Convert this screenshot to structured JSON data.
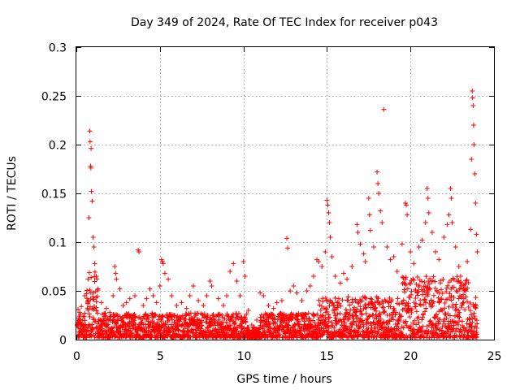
{
  "chart_data": {
    "type": "scatter",
    "title": "Day 349 of 2024, Rate Of TEC Index for receiver p043",
    "xlabel": "GPS time / hours",
    "ylabel": "ROTI / TECUs",
    "xlim": [
      0,
      25
    ],
    "ylim": [
      0,
      0.3
    ],
    "xticks": [
      0,
      5,
      10,
      15,
      20,
      25
    ],
    "xtick_labels": [
      "0",
      "5",
      "10",
      "15",
      "20",
      "25"
    ],
    "yticks": [
      0,
      0.05,
      0.1,
      0.15,
      0.2,
      0.25,
      0.3
    ],
    "ytick_labels": [
      "0",
      "0.05",
      "0.1",
      "0.15",
      "0.2",
      "0.25",
      "0.3"
    ],
    "grid": true,
    "marker": "plus",
    "color": "#ff0000",
    "series": [
      {
        "name": "ROTI",
        "points": [
          [
            0.1,
            0.031
          ],
          [
            0.2,
            0.028
          ],
          [
            0.3,
            0.034
          ],
          [
            0.4,
            0.024
          ],
          [
            0.5,
            0.045
          ],
          [
            0.6,
            0.047
          ],
          [
            0.7,
            0.062
          ],
          [
            0.75,
            0.125
          ],
          [
            0.8,
            0.214
          ],
          [
            0.82,
            0.203
          ],
          [
            0.85,
            0.178
          ],
          [
            0.87,
            0.176
          ],
          [
            0.88,
            0.196
          ],
          [
            0.9,
            0.152
          ],
          [
            0.95,
            0.142
          ],
          [
            1.0,
            0.105
          ],
          [
            1.05,
            0.095
          ],
          [
            1.1,
            0.078
          ],
          [
            1.2,
            0.065
          ],
          [
            1.3,
            0.052
          ],
          [
            1.5,
            0.038
          ],
          [
            1.8,
            0.032
          ],
          [
            2.0,
            0.028
          ],
          [
            2.2,
            0.045
          ],
          [
            2.3,
            0.075
          ],
          [
            2.35,
            0.068
          ],
          [
            2.4,
            0.062
          ],
          [
            2.6,
            0.052
          ],
          [
            2.8,
            0.035
          ],
          [
            3.0,
            0.038
          ],
          [
            3.2,
            0.042
          ],
          [
            3.5,
            0.045
          ],
          [
            3.7,
            0.092
          ],
          [
            3.75,
            0.09
          ],
          [
            4.0,
            0.035
          ],
          [
            4.2,
            0.042
          ],
          [
            4.4,
            0.052
          ],
          [
            4.6,
            0.045
          ],
          [
            4.8,
            0.038
          ],
          [
            5.0,
            0.055
          ],
          [
            5.1,
            0.082
          ],
          [
            5.15,
            0.08
          ],
          [
            5.2,
            0.078
          ],
          [
            5.3,
            0.068
          ],
          [
            5.5,
            0.062
          ],
          [
            5.7,
            0.045
          ],
          [
            6.0,
            0.035
          ],
          [
            6.3,
            0.038
          ],
          [
            6.6,
            0.032
          ],
          [
            6.8,
            0.045
          ],
          [
            7.0,
            0.055
          ],
          [
            7.3,
            0.04
          ],
          [
            7.6,
            0.035
          ],
          [
            7.8,
            0.045
          ],
          [
            8.0,
            0.06
          ],
          [
            8.1,
            0.055
          ],
          [
            8.5,
            0.042
          ],
          [
            8.8,
            0.035
          ],
          [
            9.0,
            0.045
          ],
          [
            9.2,
            0.07
          ],
          [
            9.4,
            0.078
          ],
          [
            9.6,
            0.06
          ],
          [
            9.8,
            0.045
          ],
          [
            10.0,
            0.08
          ],
          [
            10.1,
            0.065
          ],
          [
            10.3,
            0.03
          ],
          [
            10.5,
            0.015
          ],
          [
            10.8,
            0.02
          ],
          [
            11.0,
            0.048
          ],
          [
            11.2,
            0.045
          ],
          [
            11.5,
            0.035
          ],
          [
            11.8,
            0.032
          ],
          [
            12.0,
            0.038
          ],
          [
            12.3,
            0.04
          ],
          [
            12.6,
            0.104
          ],
          [
            12.65,
            0.094
          ],
          [
            12.8,
            0.05
          ],
          [
            13.0,
            0.055
          ],
          [
            13.2,
            0.048
          ],
          [
            13.5,
            0.04
          ],
          [
            13.8,
            0.05
          ],
          [
            14.0,
            0.055
          ],
          [
            14.2,
            0.065
          ],
          [
            14.4,
            0.082
          ],
          [
            14.5,
            0.08
          ],
          [
            14.7,
            0.075
          ],
          [
            14.9,
            0.09
          ],
          [
            15.0,
            0.143
          ],
          [
            15.05,
            0.138
          ],
          [
            15.1,
            0.13
          ],
          [
            15.15,
            0.12
          ],
          [
            15.2,
            0.105
          ],
          [
            15.3,
            0.085
          ],
          [
            15.5,
            0.065
          ],
          [
            15.8,
            0.058
          ],
          [
            16.0,
            0.068
          ],
          [
            16.2,
            0.062
          ],
          [
            16.5,
            0.075
          ],
          [
            16.8,
            0.118
          ],
          [
            16.85,
            0.11
          ],
          [
            17.0,
            0.098
          ],
          [
            17.2,
            0.088
          ],
          [
            17.3,
            0.08
          ],
          [
            17.5,
            0.145
          ],
          [
            17.55,
            0.128
          ],
          [
            17.6,
            0.112
          ],
          [
            17.8,
            0.095
          ],
          [
            18.0,
            0.172
          ],
          [
            18.05,
            0.16
          ],
          [
            18.1,
            0.15
          ],
          [
            18.2,
            0.132
          ],
          [
            18.3,
            0.12
          ],
          [
            18.4,
            0.236
          ],
          [
            18.6,
            0.095
          ],
          [
            18.8,
            0.082
          ],
          [
            19.0,
            0.085
          ],
          [
            19.2,
            0.07
          ],
          [
            19.5,
            0.098
          ],
          [
            19.7,
            0.14
          ],
          [
            19.75,
            0.138
          ],
          [
            19.8,
            0.128
          ],
          [
            20.0,
            0.09
          ],
          [
            20.2,
            0.078
          ],
          [
            20.5,
            0.095
          ],
          [
            20.7,
            0.102
          ],
          [
            20.9,
            0.12
          ],
          [
            21.0,
            0.155
          ],
          [
            21.05,
            0.145
          ],
          [
            21.1,
            0.13
          ],
          [
            21.3,
            0.11
          ],
          [
            21.5,
            0.09
          ],
          [
            21.7,
            0.082
          ],
          [
            22.0,
            0.105
          ],
          [
            22.2,
            0.118
          ],
          [
            22.3,
            0.128
          ],
          [
            22.4,
            0.155
          ],
          [
            22.45,
            0.145
          ],
          [
            22.5,
            0.12
          ],
          [
            22.7,
            0.095
          ],
          [
            22.9,
            0.075
          ],
          [
            23.0,
            0.065
          ],
          [
            23.2,
            0.055
          ],
          [
            23.4,
            0.08
          ],
          [
            23.6,
            0.113
          ],
          [
            23.65,
            0.185
          ],
          [
            23.7,
            0.255
          ],
          [
            23.72,
            0.248
          ],
          [
            23.75,
            0.24
          ],
          [
            23.78,
            0.22
          ],
          [
            23.8,
            0.2
          ],
          [
            23.85,
            0.17
          ],
          [
            23.9,
            0.14
          ],
          [
            23.95,
            0.108
          ],
          [
            24.0,
            0.09
          ]
        ]
      }
    ]
  }
}
